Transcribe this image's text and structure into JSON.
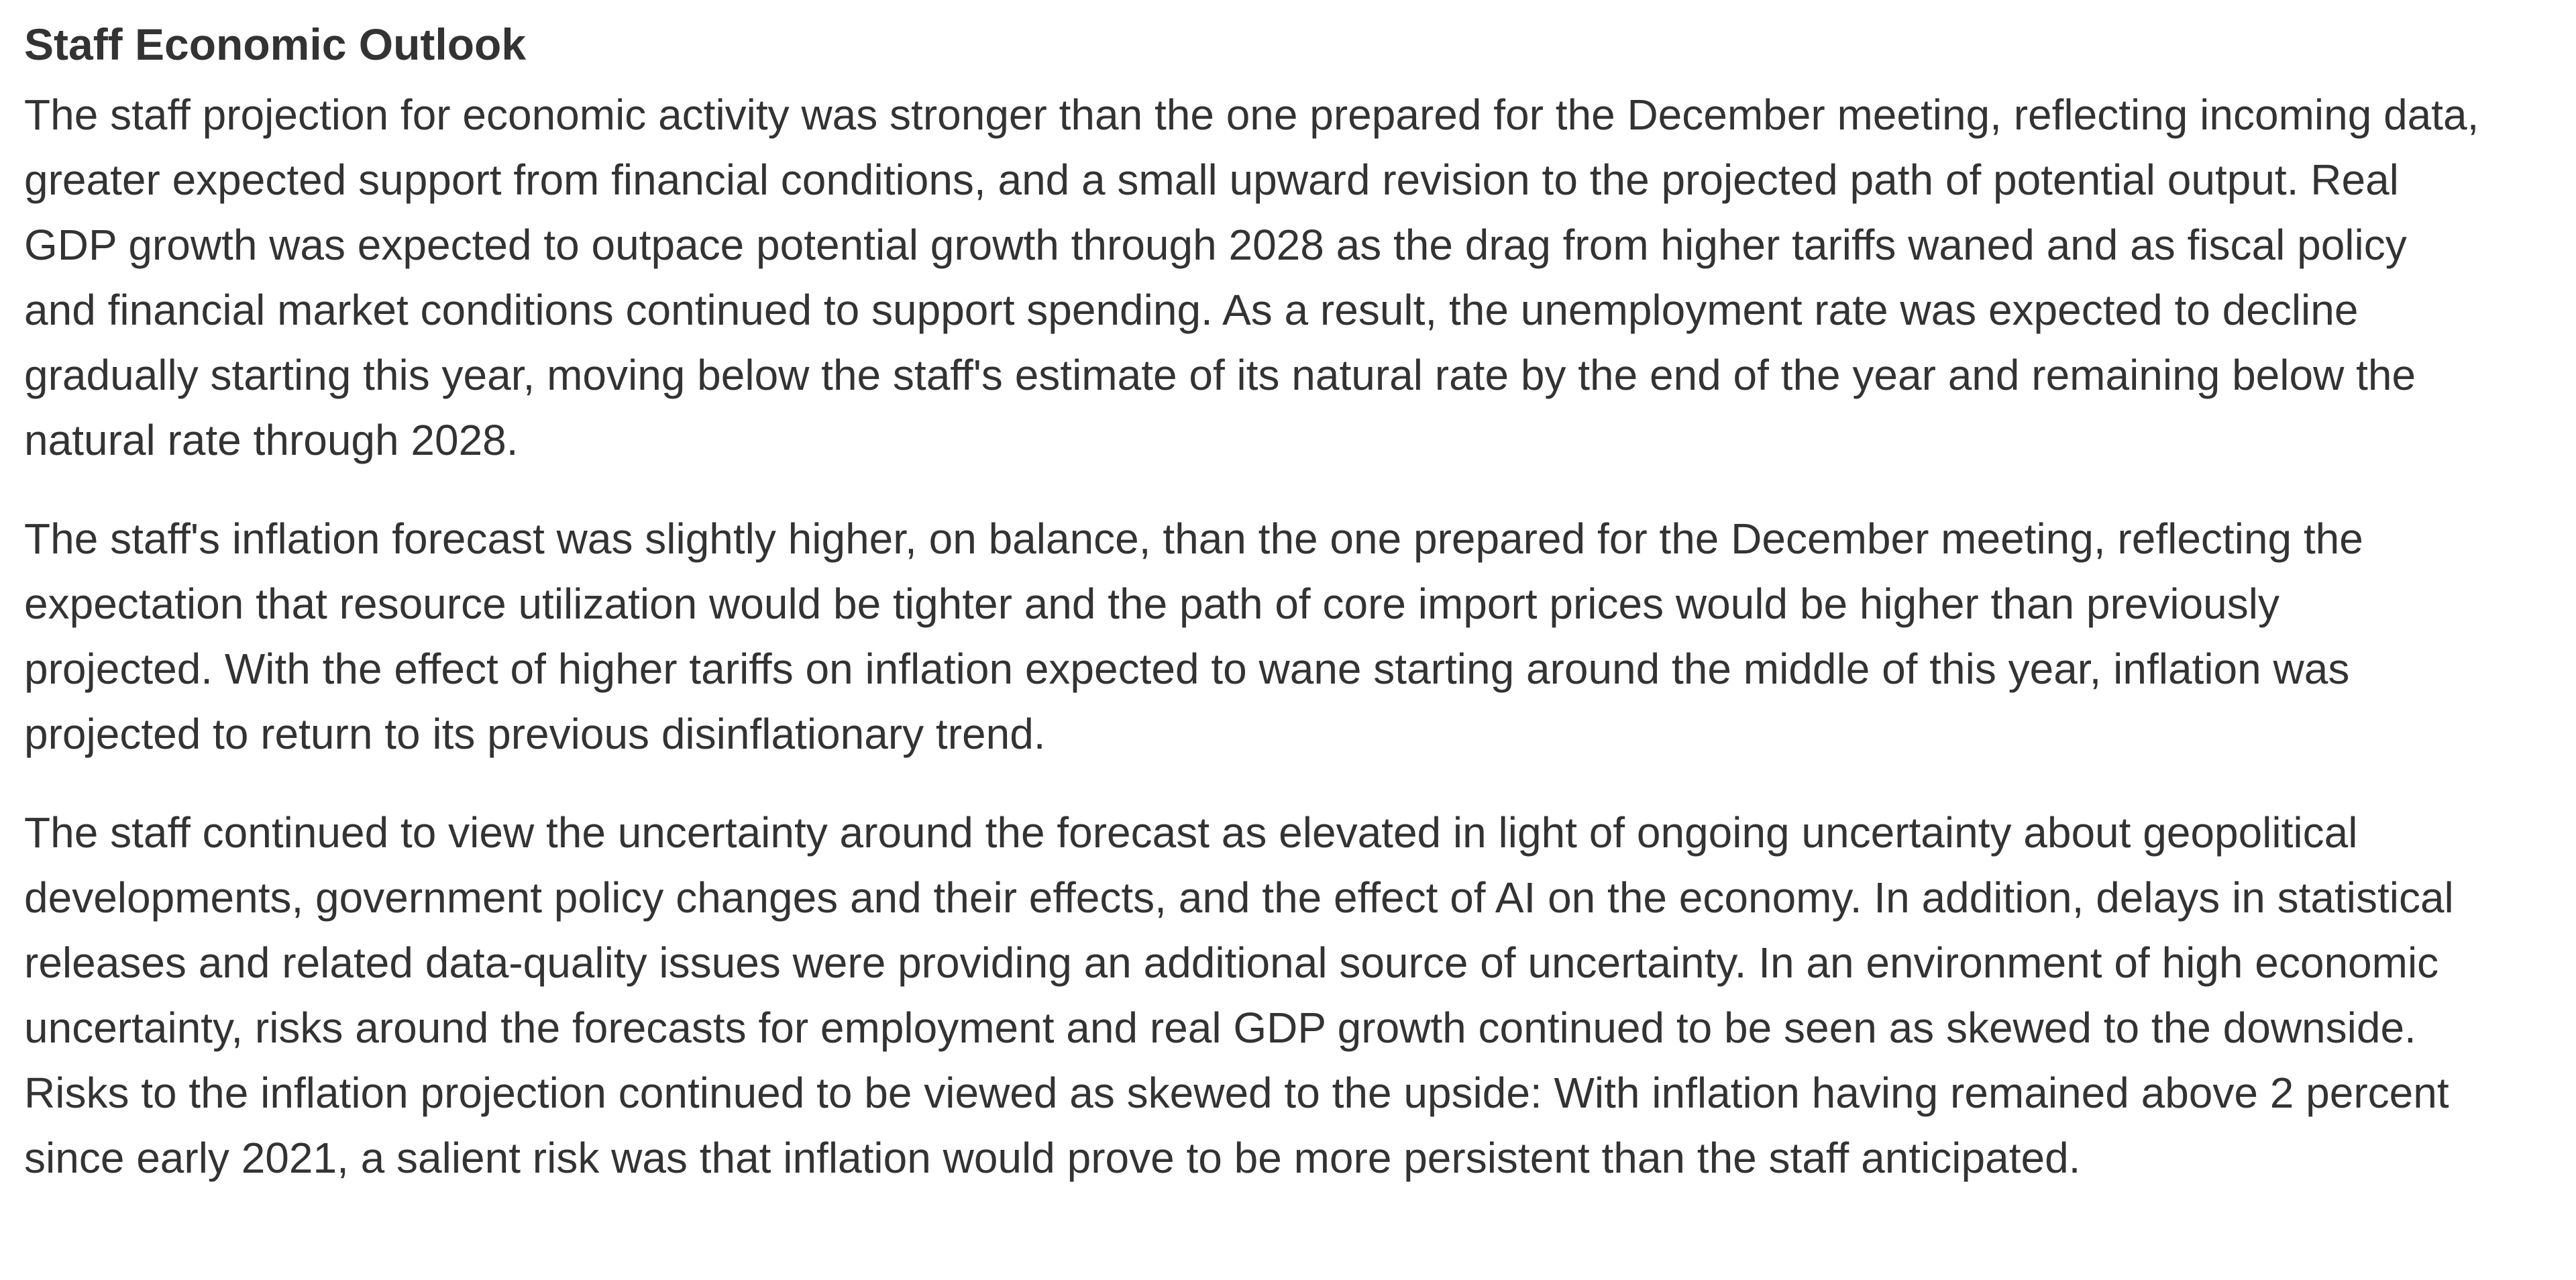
{
  "doc": {
    "heading": "Staff Economic Outlook",
    "paragraphs": [
      "The staff projection for economic activity was stronger than the one prepared for the December meeting, reflecting incoming data, greater expected support from financial conditions, and a small upward revision to the projected path of potential output. Real GDP growth was expected to outpace potential growth through 2028 as the drag from higher tariffs waned and as fiscal policy and financial market conditions continued to support spending. As a result, the unemployment rate was expected to decline gradually starting this year, moving below the staff's estimate of its natural rate by the end of the year and remaining below the natural rate through 2028.",
      "The staff's inflation forecast was slightly higher, on balance, than the one prepared for the December meeting, reflecting the expectation that resource utilization would be tighter and the path of core import prices would be higher than previously projected. With the effect of higher tariffs on inflation expected to wane starting around the middle of this year, inflation was projected to return to its previous disinflationary trend.",
      "The staff continued to view the uncertainty around the forecast as elevated in light of ongoing uncertainty about geopolitical developments, government policy changes and their effects, and the effect of AI on the economy. In addition, delays in statistical releases and related data-quality issues were providing an additional source of uncertainty. In an environment of high economic uncertainty, risks around the forecasts for employment and real GDP growth continued to be seen as skewed to the downside. Risks to the inflation projection continued to be viewed as skewed to the upside: With inflation having remained above 2 percent since early 2021, a salient risk was that inflation would prove to be more persistent than the staff anticipated."
    ],
    "colors": {
      "text": "#333333",
      "background": "#ffffff"
    }
  }
}
